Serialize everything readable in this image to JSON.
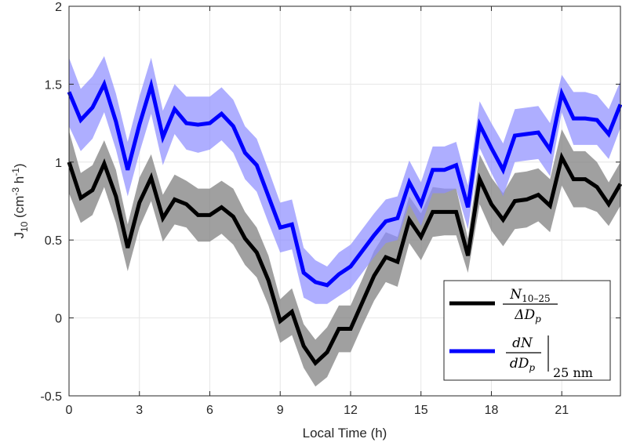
{
  "chart_data": {
    "type": "line",
    "xlabel": "Local Time (h)",
    "ylabel": {
      "base": "J",
      "sub": "10",
      "unit_open": " (cm",
      "sup1": "-3",
      "unit_mid": " h",
      "sup2": "-1",
      "unit_close": ")"
    },
    "xlim": [
      0,
      23.5
    ],
    "ylim": [
      -0.5,
      2
    ],
    "xticks": [
      0,
      3,
      6,
      9,
      12,
      15,
      18,
      21
    ],
    "xtick_labels": [
      "0",
      "3",
      "6",
      "9",
      "12",
      "15",
      "18",
      "21"
    ],
    "yticks": [
      -0.5,
      0,
      0.5,
      1,
      1.5,
      2
    ],
    "ytick_labels": [
      "-0.5",
      "0",
      "0.5",
      "1",
      "1.5",
      "2"
    ],
    "grid": true,
    "legend_position": "bottom-right",
    "x": [
      0,
      0.5,
      1,
      1.5,
      2,
      2.5,
      3,
      3.5,
      4,
      4.5,
      5,
      5.5,
      6,
      6.5,
      7,
      7.5,
      8,
      8.5,
      9,
      9.5,
      10,
      10.5,
      11,
      11.5,
      12,
      12.5,
      13,
      13.5,
      14,
      14.5,
      15,
      15.5,
      16,
      16.5,
      17,
      17.5,
      18,
      18.5,
      19,
      19.5,
      20,
      20.5,
      21,
      21.5,
      22,
      22.5,
      23,
      23.5
    ],
    "series": [
      {
        "name": "N_{10-25}/ΔD_p",
        "color": "#000000",
        "band_color": "#808080",
        "values": [
          1.0,
          0.77,
          0.82,
          0.99,
          0.78,
          0.45,
          0.74,
          0.9,
          0.64,
          0.76,
          0.73,
          0.66,
          0.66,
          0.71,
          0.65,
          0.51,
          0.42,
          0.24,
          -0.02,
          0.04,
          -0.18,
          -0.29,
          -0.22,
          -0.07,
          -0.07,
          0.1,
          0.27,
          0.39,
          0.36,
          0.63,
          0.52,
          0.68,
          0.68,
          0.68,
          0.4,
          0.89,
          0.73,
          0.63,
          0.75,
          0.76,
          0.79,
          0.72,
          1.03,
          0.89,
          0.89,
          0.84,
          0.73,
          0.86
        ],
        "upper": [
          1.2,
          0.93,
          0.98,
          1.14,
          0.95,
          0.6,
          0.9,
          1.05,
          0.79,
          0.92,
          0.88,
          0.83,
          0.83,
          0.88,
          0.83,
          0.68,
          0.58,
          0.4,
          0.12,
          0.19,
          -0.04,
          -0.14,
          -0.06,
          0.08,
          0.08,
          0.25,
          0.43,
          0.55,
          0.52,
          0.78,
          0.67,
          0.84,
          0.83,
          0.83,
          0.51,
          1.05,
          0.9,
          0.8,
          0.93,
          0.94,
          0.96,
          0.89,
          1.21,
          1.07,
          1.07,
          1.0,
          0.87,
          1.0
        ],
        "lower": [
          0.8,
          0.61,
          0.66,
          0.84,
          0.61,
          0.3,
          0.58,
          0.75,
          0.49,
          0.6,
          0.58,
          0.49,
          0.49,
          0.54,
          0.47,
          0.34,
          0.26,
          0.08,
          -0.16,
          -0.11,
          -0.32,
          -0.44,
          -0.38,
          -0.22,
          -0.22,
          -0.05,
          0.11,
          0.23,
          0.2,
          0.48,
          0.37,
          0.52,
          0.53,
          0.53,
          0.29,
          0.73,
          0.56,
          0.46,
          0.57,
          0.58,
          0.62,
          0.55,
          0.85,
          0.71,
          0.71,
          0.68,
          0.59,
          0.72
        ]
      },
      {
        "name": "dN/dD_p |_{25 nm}",
        "color": "#0000ff",
        "band_color": "#8c8cff",
        "values": [
          1.45,
          1.27,
          1.35,
          1.5,
          1.26,
          0.95,
          1.24,
          1.49,
          1.16,
          1.34,
          1.25,
          1.24,
          1.25,
          1.31,
          1.23,
          1.06,
          0.98,
          0.78,
          0.58,
          0.6,
          0.29,
          0.23,
          0.21,
          0.28,
          0.33,
          0.43,
          0.53,
          0.62,
          0.64,
          0.87,
          0.73,
          0.95,
          0.95,
          0.98,
          0.71,
          1.24,
          1.09,
          0.95,
          1.17,
          1.18,
          1.19,
          1.08,
          1.44,
          1.28,
          1.28,
          1.27,
          1.18,
          1.37
        ],
        "upper": [
          1.67,
          1.47,
          1.55,
          1.68,
          1.44,
          1.13,
          1.42,
          1.67,
          1.33,
          1.5,
          1.42,
          1.42,
          1.42,
          1.48,
          1.4,
          1.23,
          1.15,
          0.95,
          0.74,
          0.76,
          0.45,
          0.37,
          0.33,
          0.42,
          0.47,
          0.57,
          0.67,
          0.76,
          0.78,
          1.01,
          0.87,
          1.1,
          1.1,
          1.13,
          0.85,
          1.39,
          1.25,
          1.12,
          1.34,
          1.35,
          1.36,
          1.25,
          1.56,
          1.45,
          1.45,
          1.43,
          1.34,
          1.52
        ],
        "lower": [
          1.23,
          1.07,
          1.15,
          1.32,
          1.08,
          0.78,
          1.06,
          1.31,
          0.98,
          1.18,
          1.08,
          1.06,
          1.08,
          1.14,
          1.06,
          0.89,
          0.81,
          0.61,
          0.42,
          0.44,
          0.13,
          0.09,
          0.09,
          0.14,
          0.19,
          0.29,
          0.39,
          0.48,
          0.5,
          0.73,
          0.59,
          0.8,
          0.8,
          0.83,
          0.57,
          1.09,
          0.93,
          0.78,
          1.0,
          1.01,
          1.02,
          0.91,
          1.32,
          1.11,
          1.11,
          1.11,
          1.02,
          1.22
        ]
      }
    ],
    "legend": {
      "entries": [
        {
          "fraction_numerator": "N",
          "numerator_sub": "10–25",
          "fraction_denominator": "ΔD",
          "denominator_sub": "p"
        },
        {
          "fraction_numerator": "dN",
          "fraction_denominator": "dD",
          "denominator_sub": "p",
          "evaluated_at": "25 nm"
        }
      ]
    }
  }
}
